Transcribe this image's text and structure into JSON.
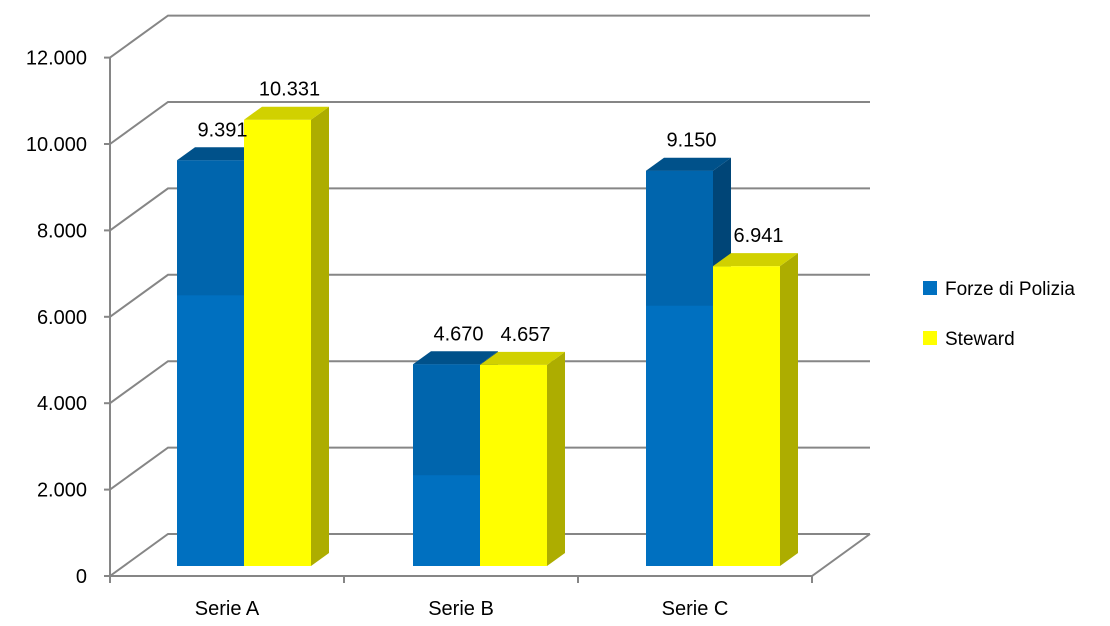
{
  "chart_data": {
    "type": "bar",
    "variant": "3d-clustered-column",
    "categories": [
      "Serie A",
      "Serie B",
      "Serie C"
    ],
    "series": [
      {
        "name": "Forze di Polizia",
        "values": [
          9391,
          4670,
          9150
        ],
        "color": "#0070C0"
      },
      {
        "name": "Steward",
        "values": [
          10331,
          4657,
          6941
        ],
        "color": "#FFFF00"
      }
    ],
    "data_labels": [
      [
        "9.391",
        "4.670",
        "9.150"
      ],
      [
        "10.331",
        "4.657",
        "6.941"
      ]
    ],
    "y_ticks": [
      "0",
      "2.000",
      "4.000",
      "6.000",
      "8.000",
      "10.000",
      "12.000"
    ],
    "ylim": [
      0,
      12000
    ],
    "grid": true,
    "legend": "right",
    "title": "",
    "xlabel": "",
    "ylabel": ""
  }
}
